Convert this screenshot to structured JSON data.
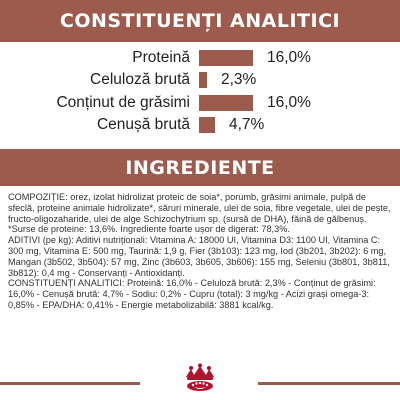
{
  "analytic": {
    "heading": "CONSTITUENȚI ANALITICI",
    "rows": [
      {
        "label": "Proteină",
        "value": "16,0%",
        "level": 16.0
      },
      {
        "label": "Celuloză brută",
        "value": "2,3%",
        "level": 2.3
      },
      {
        "label": "Conținut de grăsimi",
        "value": "16,0%",
        "level": 16.0
      },
      {
        "label": "Cenușă brută",
        "value": "4,7%",
        "level": 4.7
      }
    ]
  },
  "ingredients": {
    "heading": "INGREDIENTE",
    "composition": "COMPOZIȚIE: orez, izolat hidrolizat proteic de soia*, porumb, grăsimi animale, pulpă de sfeclă, proteine animale hidrolizate*, săruri minerale, ulei de soia, fibre vegetale, ulei de pește, fructo-oligozaharide, ulei de alge Schizochytrium sp. (sursă de DHA), făină de gălbenuș. *Surse de proteine: 13,6%. Ingrediente foarte ușor de digerat: 78,3%.",
    "additives": "ADITIVI (pe kg): Aditivi nutriționali: Vitamina A: 18000 UI, Vitamina D3: 1100 UI, Vitamina C: 300 mg, Vitamina E: 500 mg, Taurină: 1,9 g, Fier (3b103): 123 mg, Iod (3b201, 3b202): 6 mg, Mangan (3b502, 3b504): 57 mg, Zinc (3b603, 3b605, 3b606): 155 mg, Seleniu (3b801, 3b811, 3b812): 0,4 mg - Conservanți - Antioxidanți.",
    "analytic_constituents": "CONSTITUENȚI ANALITICI: Proteină: 16,0% - Celuloză brută: 2,3% - Conținut de grăsimi: 16,0% - Cenușă brută: 4,7% - Sodiu: 0,2% - Cupru (total): 3 mg/kg - Acizi grași omega-3: 0,85% - EPA/DHA: 0,41% - Energie metabolizabilă: 3881 kcal/kg."
  },
  "footer": {
    "logo_icon": "royal-canin-crown-logo-icon"
  },
  "colors": {
    "accent": "#9c5b4c",
    "text": "#222222",
    "background": "#ffffff"
  }
}
